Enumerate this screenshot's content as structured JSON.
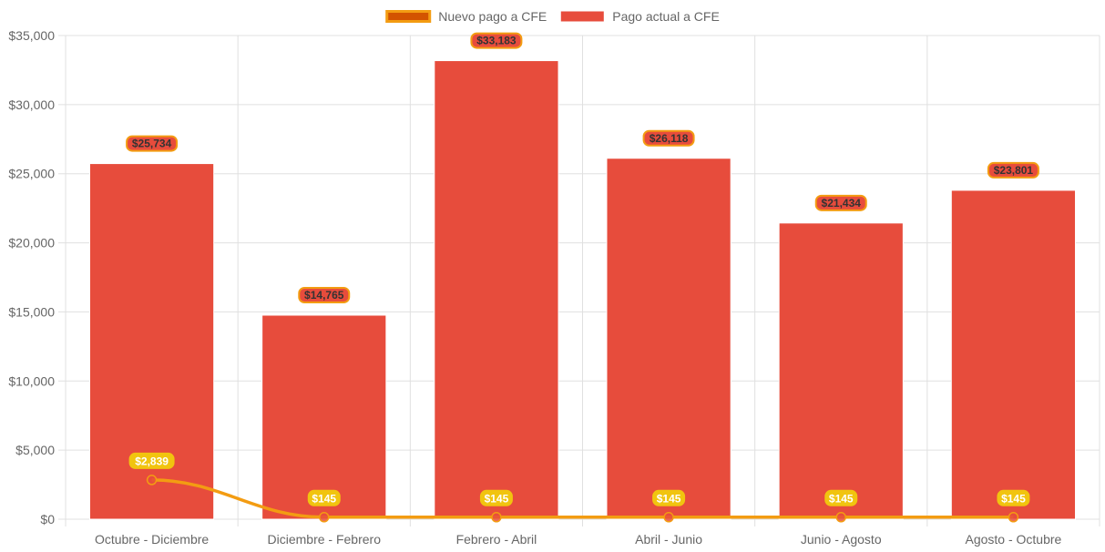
{
  "chart_data": {
    "type": "bar",
    "categories": [
      "Octubre - Diciembre",
      "Diciembre - Febrero",
      "Febrero - Abril",
      "Abril - Junio",
      "Junio - Agosto",
      "Agosto - Octubre"
    ],
    "series": [
      {
        "name": "Nuevo pago a CFE",
        "type": "line",
        "values": [
          2839,
          145,
          145,
          145,
          145,
          145
        ],
        "labels": [
          "$2,839",
          "$145",
          "$145",
          "$145",
          "$145",
          "$145"
        ],
        "color": "#f39c12",
        "point_color": "#e74c3c"
      },
      {
        "name": "Pago actual a CFE",
        "type": "bar",
        "values": [
          25734,
          14765,
          33183,
          26118,
          21434,
          23801
        ],
        "labels": [
          "$25,734",
          "$14,765",
          "$33,183",
          "$26,118",
          "$21,434",
          "$23,801"
        ],
        "color": "#e74c3c"
      }
    ],
    "ylim": [
      0,
      35000
    ],
    "yticks": [
      0,
      5000,
      10000,
      15000,
      20000,
      25000,
      30000,
      35000
    ],
    "ytick_labels": [
      "$0",
      "$5,000",
      "$10,000",
      "$15,000",
      "$20,000",
      "$25,000",
      "$30,000",
      "$35,000"
    ],
    "grid": true,
    "legend_position": "top-center",
    "title": "",
    "xlabel": "",
    "ylabel": ""
  },
  "colors": {
    "bar": "#e74c3c",
    "line": "#f39c12",
    "legend_line_fill": "#d35400",
    "bar_label_bg": "#e74c3c",
    "bar_label_border": "#f39c12",
    "bar_label_text": "#333333",
    "line_label_bg": "#f1c40f",
    "line_label_text": "#ffffff",
    "grid": "#e0e0e0"
  }
}
